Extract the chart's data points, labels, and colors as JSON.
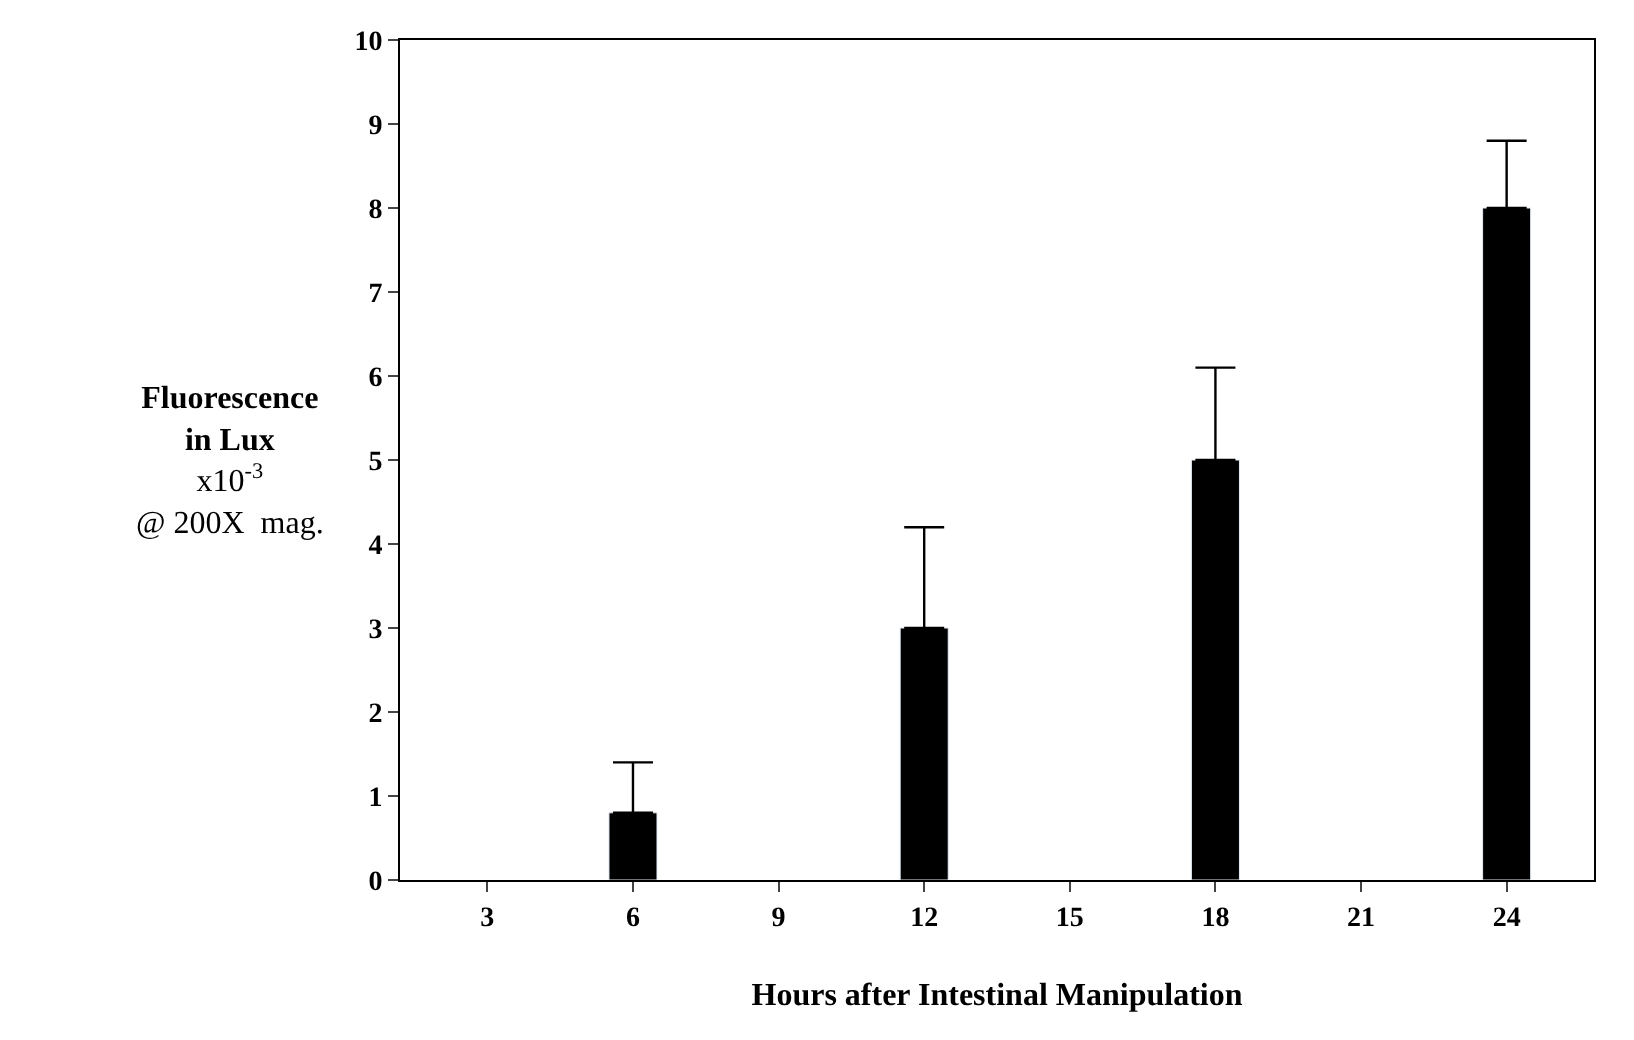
{
  "chart_data": {
    "type": "bar",
    "xlabel": "Hours after Intestinal Manipulation",
    "ylabel": "Fluorescence\nin Lux\nx10$^{-3}$\n@ 200X  mag.",
    "categories": [
      "3",
      "6",
      "9",
      "12",
      "15",
      "18",
      "21",
      "24"
    ],
    "values": [
      null,
      0.8,
      null,
      3,
      null,
      5,
      null,
      8
    ],
    "errors": [
      null,
      [
        0.8,
        1.4
      ],
      null,
      [
        3,
        4.2
      ],
      null,
      [
        5,
        6.1
      ],
      null,
      [
        8,
        8.8
      ]
    ],
    "color": "#000000",
    "ylim": [
      0,
      10
    ],
    "yticks": [
      0,
      1,
      2,
      3,
      4,
      5,
      6,
      7,
      8,
      9,
      10
    ],
    "legend": false
  }
}
